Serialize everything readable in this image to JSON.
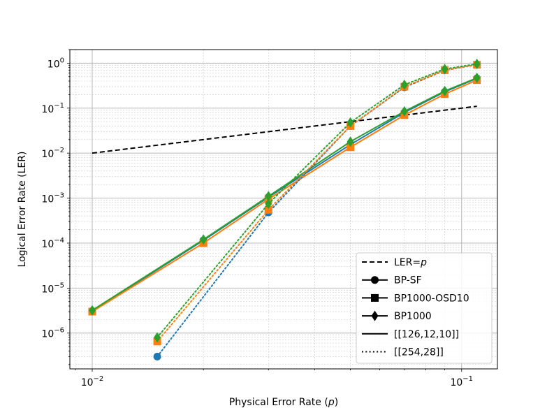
{
  "chart_data": {
    "type": "line",
    "xlabel": "Physical Error Rate (",
    "xlabel_var": "p",
    "xlabel_close": ")",
    "ylabel": "Logical Error Rate (LER)",
    "x_scale": "log",
    "y_scale": "log",
    "xlim": [
      0.0087,
      0.125
    ],
    "ylim": [
      1.6e-07,
      2.0
    ],
    "grid": true,
    "legend_placement": "bottom-right",
    "x_ticks": [
      {
        "value": 0.01,
        "base": "10",
        "exp": "−2"
      },
      {
        "value": 0.1,
        "base": "10",
        "exp": "−1"
      }
    ],
    "y_ticks": [
      {
        "value": 1e-06,
        "base": "10",
        "exp": "−6"
      },
      {
        "value": 1e-05,
        "base": "10",
        "exp": "−5"
      },
      {
        "value": 0.0001,
        "base": "10",
        "exp": "−4"
      },
      {
        "value": 0.001,
        "base": "10",
        "exp": "−3"
      },
      {
        "value": 0.01,
        "base": "10",
        "exp": "−2"
      },
      {
        "value": 0.1,
        "base": "10",
        "exp": "−1"
      },
      {
        "value": 1,
        "base": "10",
        "exp": "0"
      }
    ],
    "reference": {
      "label": "LER=",
      "label_var": "p",
      "x": [
        0.01,
        0.11
      ],
      "y": [
        0.01,
        0.11
      ],
      "color": "#000000",
      "style": "dashed"
    },
    "series": [
      {
        "decoder": "BP-SF",
        "code": "[[126,12,10]]",
        "color": "#1f77b4",
        "marker": "circle",
        "style": "solid",
        "x": [
          0.01,
          0.02,
          0.03,
          0.05,
          0.07,
          0.09,
          0.11
        ],
        "y": [
          3.1e-06,
          0.000115,
          0.00105,
          0.0155,
          0.08,
          0.23,
          0.46
        ]
      },
      {
        "decoder": "BP1000-OSD10",
        "code": "[[126,12,10]]",
        "color": "#ff7f0e",
        "marker": "square",
        "style": "solid",
        "x": [
          0.01,
          0.02,
          0.03,
          0.05,
          0.07,
          0.09,
          0.11
        ],
        "y": [
          3e-06,
          0.0001,
          0.00095,
          0.0135,
          0.07,
          0.205,
          0.42
        ]
      },
      {
        "decoder": "BP1000",
        "code": "[[126,12,10]]",
        "color": "#2ca02c",
        "marker": "diamond",
        "style": "solid",
        "x": [
          0.01,
          0.02,
          0.03,
          0.05,
          0.07,
          0.09,
          0.11
        ],
        "y": [
          3.2e-06,
          0.00012,
          0.0011,
          0.018,
          0.085,
          0.24,
          0.47
        ]
      },
      {
        "decoder": "BP-SF",
        "code": "[[254,28]]",
        "color": "#1f77b4",
        "marker": "circle",
        "style": "dotted",
        "x": [
          0.015,
          0.03,
          0.05,
          0.07,
          0.09,
          0.11
        ],
        "y": [
          3e-07,
          0.00048,
          0.04,
          0.29,
          0.69,
          0.93
        ]
      },
      {
        "decoder": "BP1000-OSD10",
        "code": "[[254,28]]",
        "color": "#ff7f0e",
        "marker": "square",
        "style": "dotted",
        "x": [
          0.015,
          0.03,
          0.05,
          0.07,
          0.09,
          0.11
        ],
        "y": [
          6.5e-07,
          0.00055,
          0.04,
          0.3,
          0.7,
          0.92
        ]
      },
      {
        "decoder": "BP1000",
        "code": "[[254,28]]",
        "color": "#2ca02c",
        "marker": "diamond",
        "style": "dotted",
        "x": [
          0.015,
          0.03,
          0.05,
          0.07,
          0.09,
          0.11
        ],
        "y": [
          8e-07,
          0.00075,
          0.048,
          0.33,
          0.74,
          0.96
        ]
      }
    ],
    "legend": [
      {
        "label": "LER=",
        "label_var": "p",
        "line": "dashed",
        "marker": "none"
      },
      {
        "label": "BP-SF",
        "line": "solid",
        "marker": "circle"
      },
      {
        "label": "BP1000-OSD10",
        "line": "solid",
        "marker": "square"
      },
      {
        "label": "BP1000",
        "line": "solid",
        "marker": "diamond"
      },
      {
        "label": "[[126,12,10]]",
        "line": "solid",
        "marker": "none"
      },
      {
        "label": "[[254,28]]",
        "line": "dotted",
        "marker": "none"
      }
    ]
  }
}
